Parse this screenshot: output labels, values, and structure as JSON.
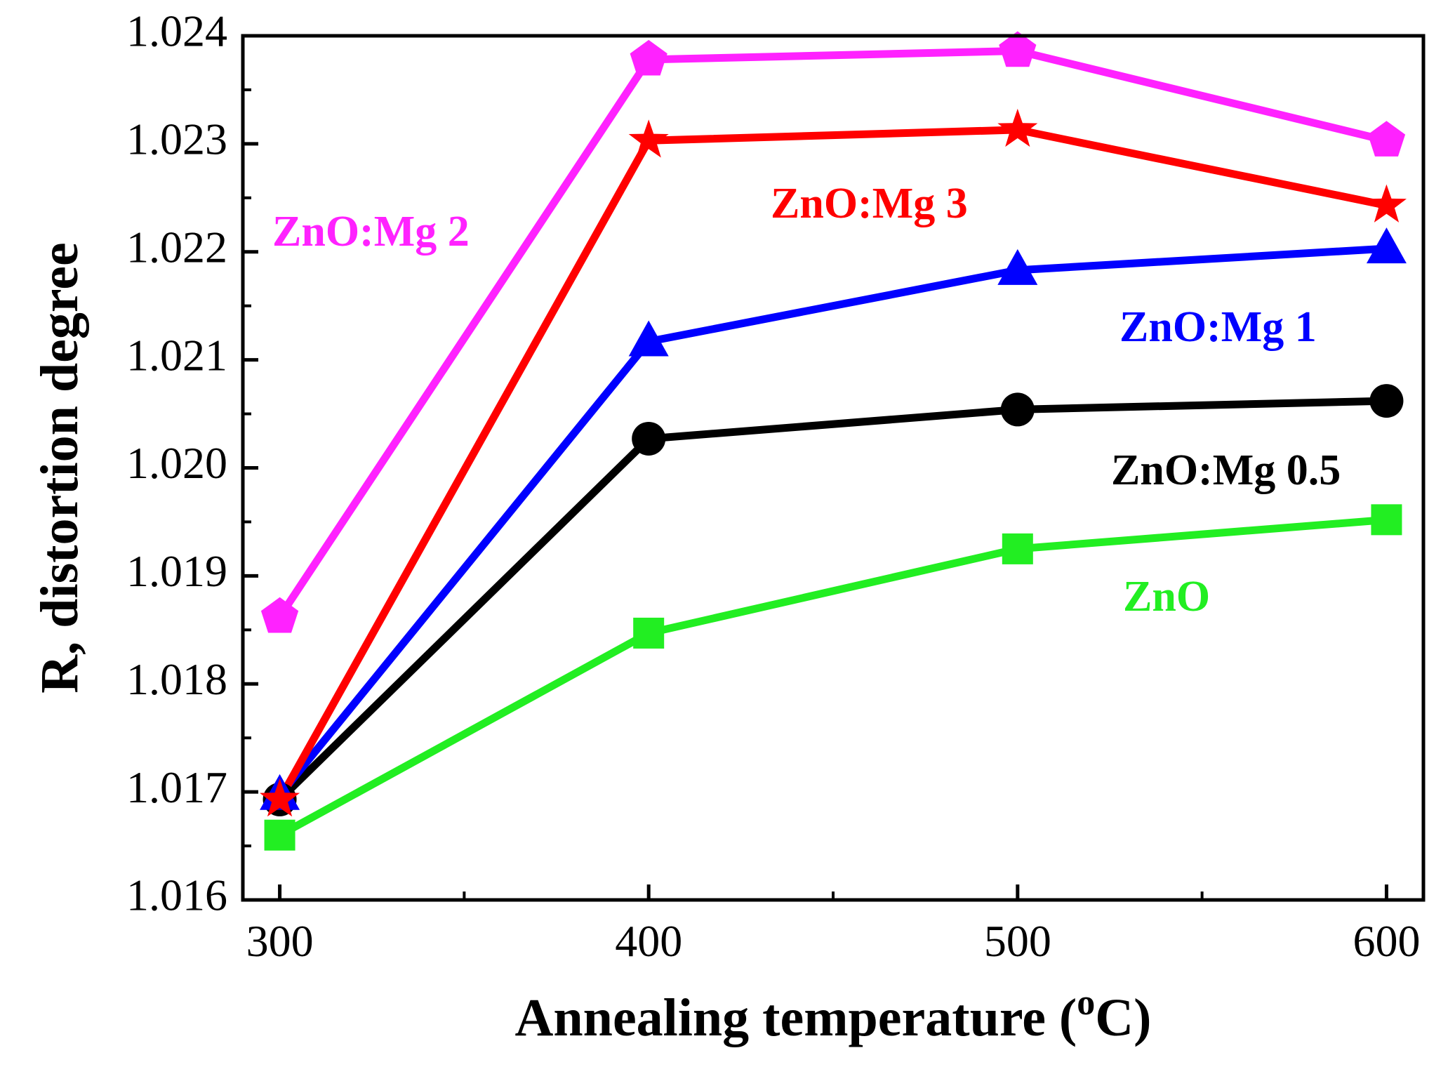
{
  "chart_data": {
    "type": "line",
    "title": "",
    "xlabel": "Annealing temperature (",
    "xlabel_sup": "o",
    "xlabel_unit": "C)",
    "ylabel": "R, distortion degree",
    "x": [
      300,
      400,
      500,
      600
    ],
    "xticks": [
      "300",
      "400",
      "500",
      "600"
    ],
    "xlim": [
      290,
      610
    ],
    "yticks": [
      "1.016",
      "1.017",
      "1.018",
      "1.019",
      "1.020",
      "1.021",
      "1.022",
      "1.023",
      "1.024"
    ],
    "ylim": [
      1.016,
      1.024
    ],
    "grid": false,
    "series": [
      {
        "name": "ZnO",
        "color": "#22ee22",
        "marker": "square",
        "values": [
          1.0166,
          1.01847,
          1.01925,
          1.01952
        ]
      },
      {
        "name": "ZnO:Mg 0.5",
        "color": "#000000",
        "marker": "circle",
        "values": [
          1.01693,
          1.02027,
          1.02054,
          1.02062
        ]
      },
      {
        "name": "ZnO:Mg 1",
        "color": "#0000ff",
        "marker": "triangle",
        "values": [
          1.01697,
          1.02117,
          1.02183,
          1.02203
        ]
      },
      {
        "name": "ZnO:Mg 3",
        "color": "#ff0000",
        "marker": "star",
        "values": [
          1.01693,
          1.02303,
          1.02313,
          1.02243
        ]
      },
      {
        "name": "ZnO:Mg 2",
        "color": "#ff22ff",
        "marker": "pentagon",
        "values": [
          1.01862,
          1.02378,
          1.02386,
          1.02303
        ]
      }
    ]
  }
}
